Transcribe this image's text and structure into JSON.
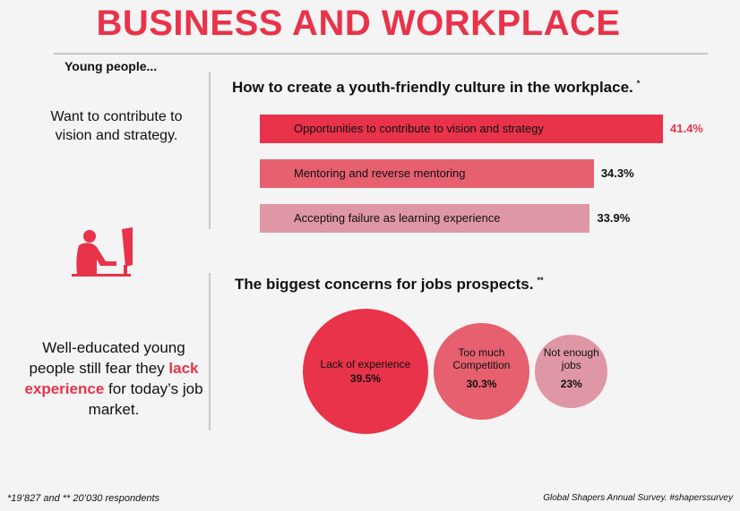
{
  "title": "BUSINESS AND WORKPLACE",
  "sidebar": {
    "heading": "Young people...",
    "text1": "Want to contribute to vision and strategy.",
    "text2_before": "Well-educated young people still fear they",
    "text2_highlight": "lack experience",
    "text2_after": "for today’s job market."
  },
  "chart_data": [
    {
      "type": "bar",
      "title": "How to create a youth-friendly culture in the workplace.",
      "title_note": "*",
      "categories": [
        "Opportunities to contribute to vision and strategy",
        "Mentoring and reverse mentoring",
        "Accepting failure as learning experience"
      ],
      "values": [
        41.4,
        34.3,
        33.9
      ],
      "value_labels": [
        "41.4%",
        "34.3%",
        "33.9%"
      ],
      "colors": [
        "#e8334a",
        "#e6606f",
        "#e097a5"
      ]
    },
    {
      "type": "bubble",
      "title": "The biggest concerns for jobs prospects.",
      "title_note": "**",
      "categories": [
        "Lack of experience",
        "Too much Competition",
        "Not enough jobs"
      ],
      "values": [
        39.5,
        30.3,
        23
      ],
      "value_labels": [
        "39.5%",
        "30.3%",
        "23%"
      ],
      "colors": [
        "#e8334a",
        "#e6606f",
        "#e097a5"
      ]
    }
  ],
  "footer": {
    "left": "*19’827 and ** 20’030 respondents",
    "right": "Global Shapers Annual Survey. #shaperssurvey"
  }
}
